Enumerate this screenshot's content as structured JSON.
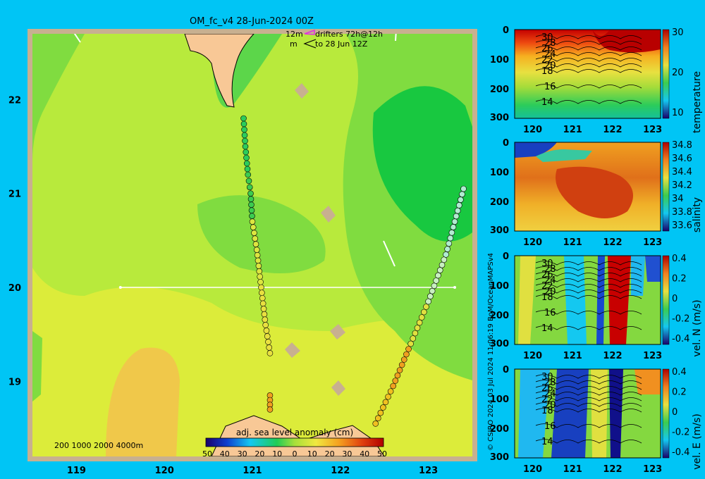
{
  "header": {
    "title": "OM_fc_v4  28-Jun-2024 00Z"
  },
  "legend_drifters": {
    "line1_left": "12m",
    "line1_right": "drifters 72h@12h",
    "line2_left": "m",
    "line2_right": "to 28 Jun 12Z"
  },
  "bathy_legend": "200  1000  2000  4000m",
  "side_credit": "© CSIRO 2024   03 Jul 2024 11:06:19 BoM/OceanMAPSv4",
  "chart_data": [
    {
      "type": "heatmap",
      "title": "OM_fc_v4  28-Jun-2024 00Z",
      "x_ticks": [
        "119",
        "120",
        "121",
        "122",
        "123"
      ],
      "y_ticks": [
        "22",
        "21",
        "20",
        "19"
      ],
      "xlim": [
        118.5,
        123.5
      ],
      "ylim": [
        18.2,
        22.7
      ],
      "colorbar": {
        "label": "adj. sea level anomaly (cm)",
        "ticks": [
          "50",
          "40",
          "30",
          "20",
          "10",
          "0",
          "10",
          "20",
          "30",
          "40",
          "50"
        ],
        "range": [
          -50,
          50
        ]
      },
      "section_line": {
        "lon": [
          119.5,
          123.3
        ],
        "lat": [
          20.0,
          20.0
        ]
      },
      "drifter_tracks": [
        {
          "lon": [
            120.9,
            120.92,
            120.95,
            120.98,
            121.0,
            121.05,
            121.1,
            121.15,
            121.2
          ],
          "lat": [
            21.8,
            21.5,
            21.2,
            21.0,
            20.7,
            20.4,
            20.0,
            19.6,
            19.3
          ]
        },
        {
          "lon": [
            121.2,
            121.2
          ],
          "lat": [
            18.85,
            18.7
          ]
        },
        {
          "lon": [
            122.4,
            122.6,
            122.8,
            123.0,
            123.2,
            123.4
          ],
          "lat": [
            18.55,
            18.95,
            19.4,
            19.85,
            20.35,
            21.05
          ]
        }
      ]
    },
    {
      "type": "heatmap",
      "ylabel": "temperature",
      "x_ticks": [
        "120",
        "121",
        "122",
        "123"
      ],
      "y_ticks": [
        "0",
        "100",
        "200",
        "300"
      ],
      "colorbar_ticks": [
        "30",
        "20",
        "10"
      ],
      "contour_labels": [
        "30",
        "28",
        "26",
        "24",
        "22",
        "20",
        "18",
        "16",
        "14"
      ]
    },
    {
      "type": "heatmap",
      "ylabel": "salinity",
      "x_ticks": [
        "120",
        "121",
        "122",
        "123"
      ],
      "y_ticks": [
        "0",
        "100",
        "200",
        "300"
      ],
      "colorbar_ticks": [
        "34.8",
        "34.6",
        "34.4",
        "34.2",
        "34",
        "33.8",
        "33.6"
      ]
    },
    {
      "type": "heatmap",
      "ylabel": "vel. N (m/s)",
      "x_ticks": [
        "120",
        "121",
        "122",
        "123"
      ],
      "y_ticks": [
        "0",
        "100",
        "200",
        "300"
      ],
      "colorbar_ticks": [
        "0.4",
        "0.2",
        "0",
        "-0.2",
        "-0.4"
      ],
      "contour_labels": [
        "30",
        "28",
        "26",
        "24",
        "22",
        "20",
        "18",
        "16",
        "14"
      ]
    },
    {
      "type": "heatmap",
      "ylabel": "vel. E (m/s)",
      "x_ticks": [
        "120",
        "121",
        "122",
        "123"
      ],
      "y_ticks": [
        "0",
        "100",
        "200",
        "300"
      ],
      "colorbar_ticks": [
        "0.4",
        "0.2",
        "0",
        "-0.2",
        "-0.4"
      ],
      "contour_labels": [
        "30",
        "28",
        "26",
        "24",
        "22",
        "20",
        "18",
        "16",
        "14"
      ]
    }
  ]
}
